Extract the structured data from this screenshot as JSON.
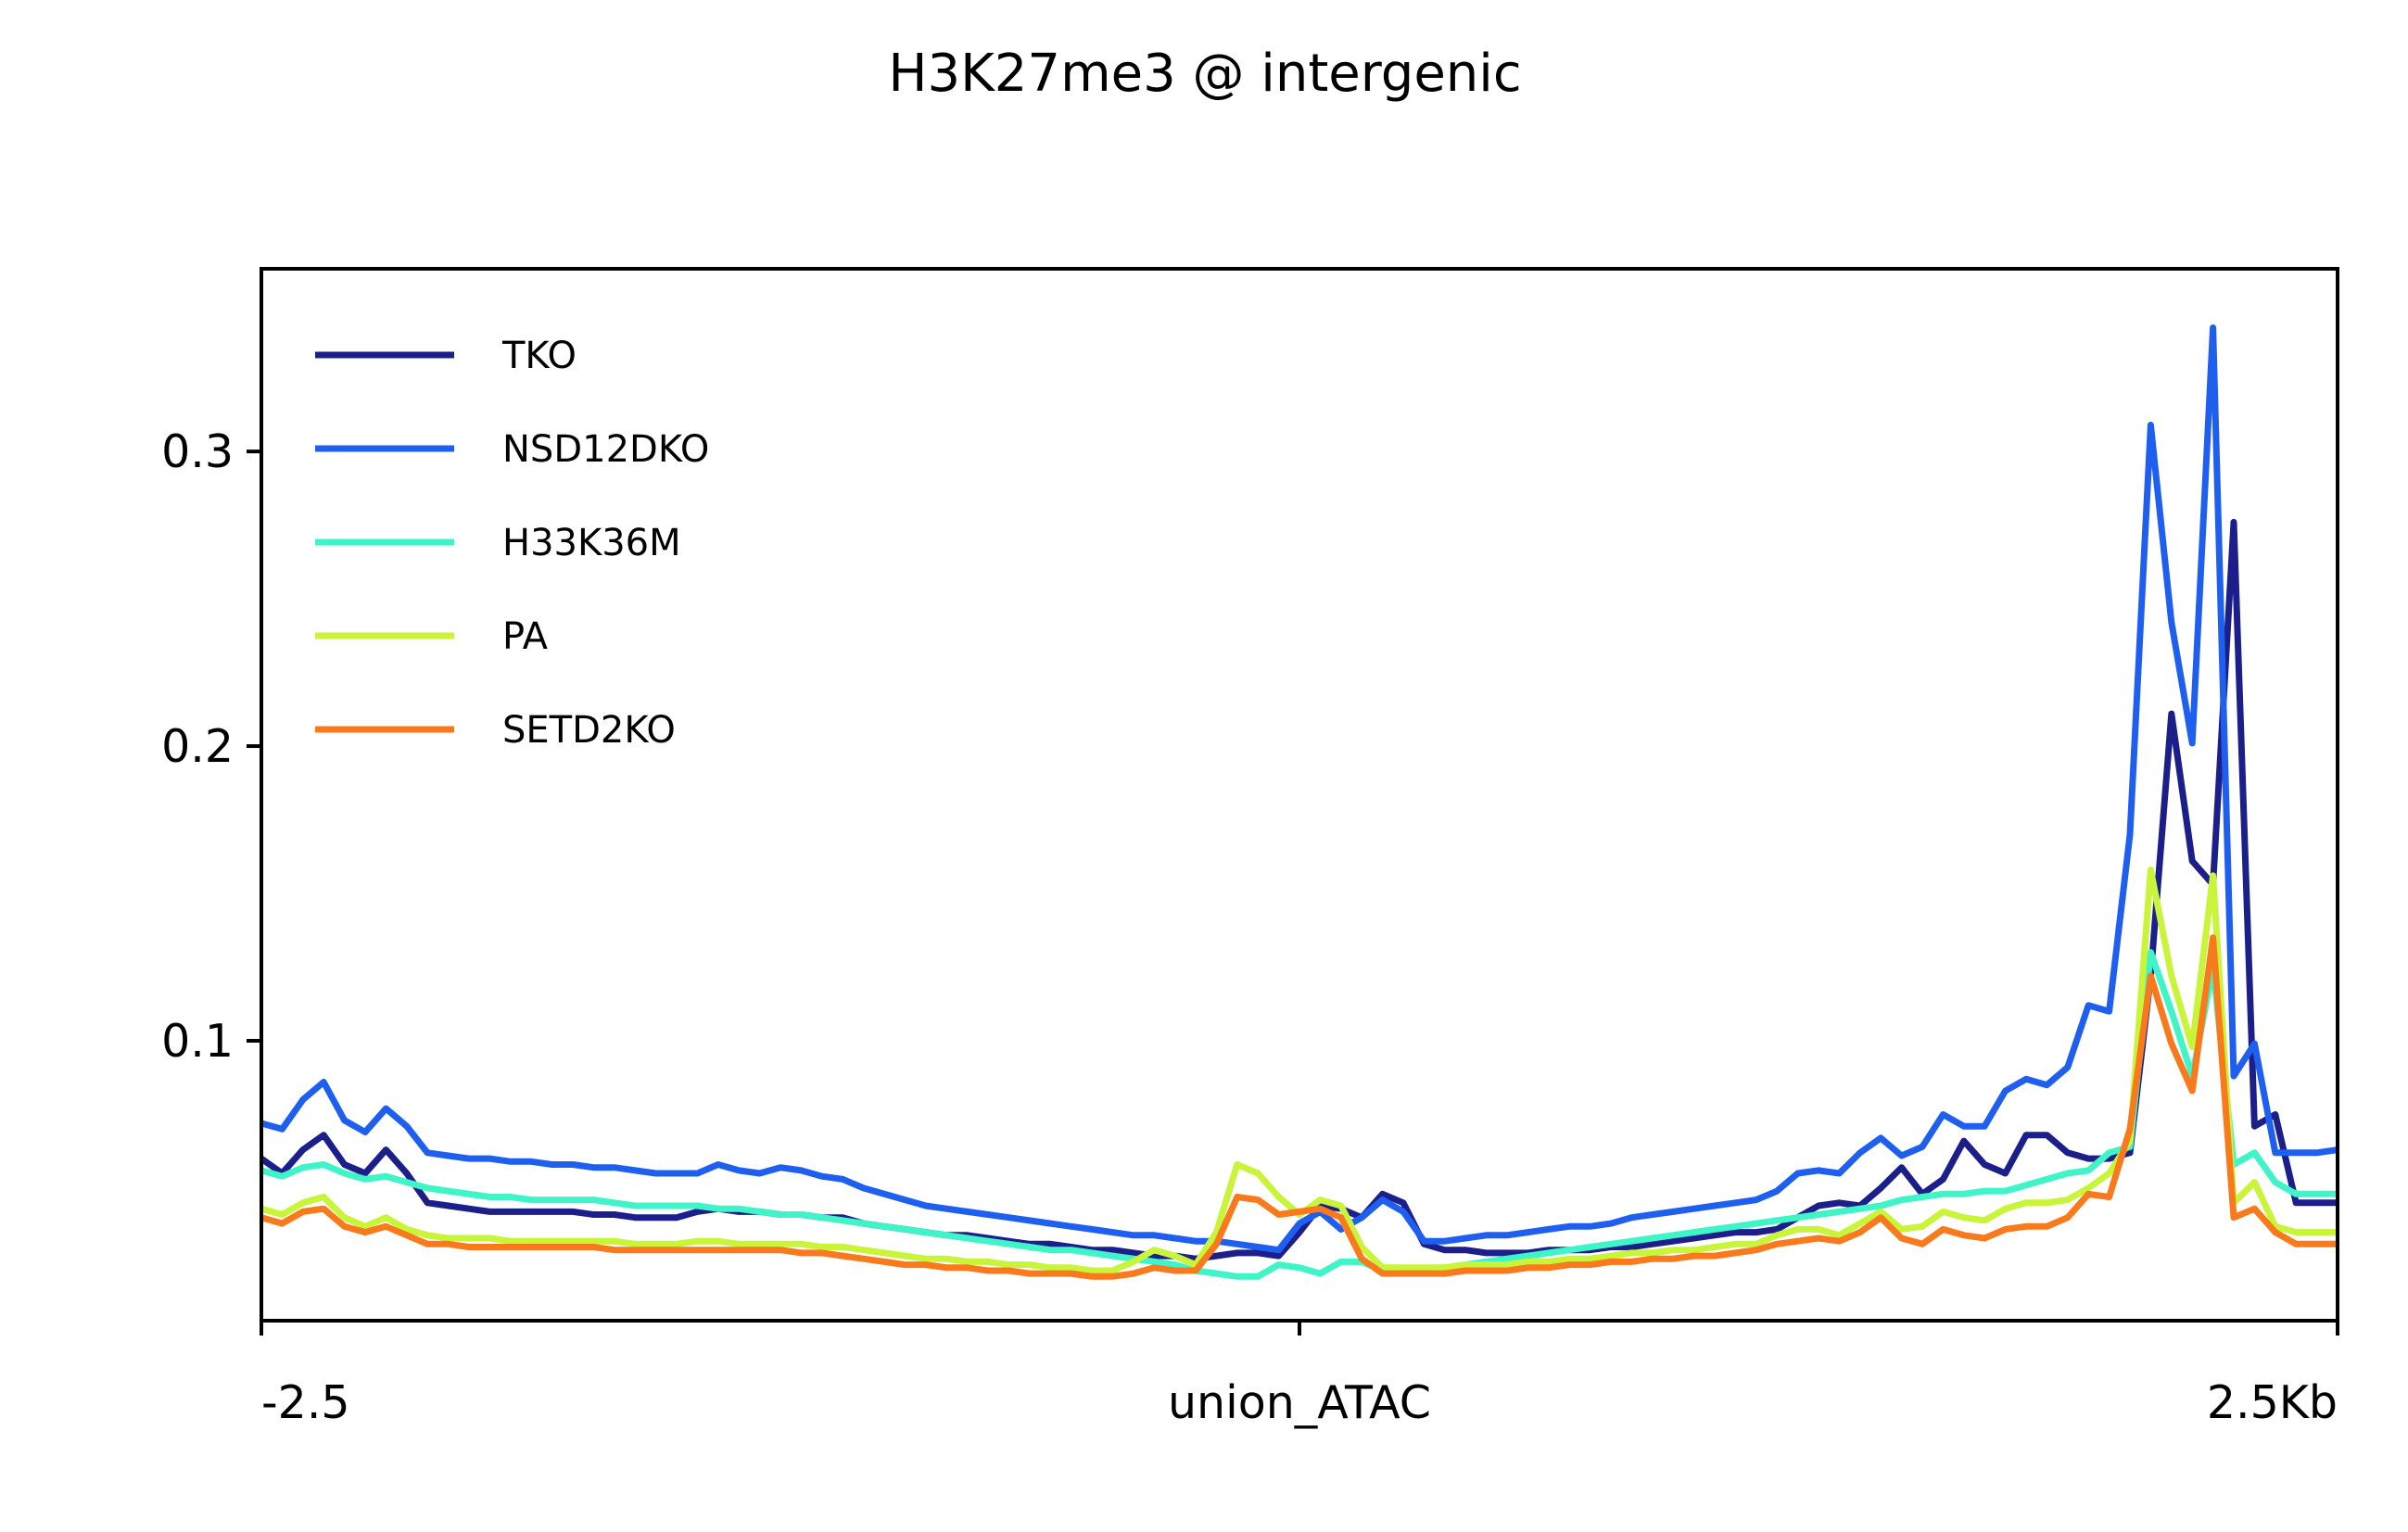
{
  "chart_data": {
    "type": "line",
    "title": "H3K27me3 @ intergenic",
    "xlabel": "",
    "ylabel": "",
    "xlim": [
      -2.5,
      2.5
    ],
    "ylim": [
      0.005,
      0.362
    ],
    "x_ticks": [
      {
        "value": -2.5,
        "label": "-2.5"
      },
      {
        "value": 0,
        "label": "union_ATAC"
      },
      {
        "value": 2.5,
        "label": "2.5Kb"
      }
    ],
    "y_ticks": [
      {
        "value": 0.1,
        "label": "0.1"
      },
      {
        "value": 0.2,
        "label": "0.2"
      },
      {
        "value": 0.3,
        "label": "0.3"
      }
    ],
    "grid": false,
    "legend_position": "top-left",
    "x": [
      -2.5,
      -2.45,
      -2.4,
      -2.35,
      -2.3,
      -2.25,
      -2.2,
      -2.15,
      -2.1,
      -2.05,
      -2.0,
      -1.95,
      -1.9,
      -1.85,
      -1.8,
      -1.75,
      -1.7,
      -1.65,
      -1.6,
      -1.55,
      -1.5,
      -1.45,
      -1.4,
      -1.35,
      -1.3,
      -1.25,
      -1.2,
      -1.15,
      -1.1,
      -1.05,
      -1.0,
      -0.95,
      -0.9,
      -0.85,
      -0.8,
      -0.75,
      -0.7,
      -0.65,
      -0.6,
      -0.55,
      -0.5,
      -0.45,
      -0.4,
      -0.35,
      -0.3,
      -0.25,
      -0.2,
      -0.15,
      -0.1,
      -0.05,
      0.0,
      0.05,
      0.1,
      0.15,
      0.2,
      0.25,
      0.3,
      0.35,
      0.4,
      0.45,
      0.5,
      0.55,
      0.6,
      0.65,
      0.7,
      0.75,
      0.8,
      0.85,
      0.9,
      0.95,
      1.0,
      1.05,
      1.1,
      1.15,
      1.2,
      1.25,
      1.3,
      1.35,
      1.4,
      1.45,
      1.5,
      1.55,
      1.6,
      1.65,
      1.7,
      1.75,
      1.8,
      1.85,
      1.9,
      1.95,
      2.0,
      2.05,
      2.1,
      2.15,
      2.2,
      2.25,
      2.3,
      2.35,
      2.4,
      2.45,
      2.5
    ],
    "series": [
      {
        "name": "TKO",
        "color": "#1c1f8a",
        "values": [
          0.06,
          0.055,
          0.063,
          0.068,
          0.058,
          0.055,
          0.063,
          0.055,
          0.045,
          0.044,
          0.043,
          0.042,
          0.042,
          0.042,
          0.042,
          0.042,
          0.041,
          0.041,
          0.04,
          0.04,
          0.04,
          0.042,
          0.043,
          0.042,
          0.042,
          0.041,
          0.041,
          0.04,
          0.04,
          0.038,
          0.037,
          0.036,
          0.035,
          0.034,
          0.034,
          0.033,
          0.032,
          0.031,
          0.031,
          0.03,
          0.029,
          0.029,
          0.028,
          0.027,
          0.027,
          0.026,
          0.027,
          0.028,
          0.028,
          0.027,
          0.035,
          0.044,
          0.043,
          0.04,
          0.048,
          0.045,
          0.031,
          0.029,
          0.029,
          0.028,
          0.028,
          0.028,
          0.029,
          0.029,
          0.029,
          0.03,
          0.03,
          0.031,
          0.032,
          0.033,
          0.034,
          0.035,
          0.035,
          0.036,
          0.04,
          0.044,
          0.045,
          0.044,
          0.05,
          0.057,
          0.048,
          0.053,
          0.066,
          0.058,
          0.055,
          0.068,
          0.068,
          0.062,
          0.06,
          0.06,
          0.062,
          0.122,
          0.211,
          0.161,
          0.153,
          0.276,
          0.071,
          0.075,
          0.045,
          0.045,
          0.045
        ]
      },
      {
        "name": "NSD12DKO",
        "color": "#1f5ff0",
        "values": [
          0.072,
          0.07,
          0.08,
          0.086,
          0.073,
          0.069,
          0.077,
          0.071,
          0.062,
          0.061,
          0.06,
          0.06,
          0.059,
          0.059,
          0.058,
          0.058,
          0.057,
          0.057,
          0.056,
          0.055,
          0.055,
          0.055,
          0.058,
          0.056,
          0.055,
          0.057,
          0.056,
          0.054,
          0.053,
          0.05,
          0.048,
          0.046,
          0.044,
          0.043,
          0.042,
          0.041,
          0.04,
          0.039,
          0.038,
          0.037,
          0.036,
          0.035,
          0.034,
          0.034,
          0.033,
          0.032,
          0.032,
          0.031,
          0.03,
          0.029,
          0.038,
          0.042,
          0.036,
          0.04,
          0.046,
          0.042,
          0.032,
          0.032,
          0.033,
          0.034,
          0.034,
          0.035,
          0.036,
          0.037,
          0.037,
          0.038,
          0.04,
          0.041,
          0.042,
          0.043,
          0.044,
          0.045,
          0.046,
          0.049,
          0.055,
          0.056,
          0.055,
          0.062,
          0.067,
          0.061,
          0.064,
          0.075,
          0.071,
          0.071,
          0.083,
          0.087,
          0.085,
          0.091,
          0.112,
          0.11,
          0.17,
          0.309,
          0.242,
          0.201,
          0.342,
          0.088,
          0.099,
          0.062,
          0.062,
          0.062,
          0.063
        ]
      },
      {
        "name": "H33K36M",
        "color": "#3ff5c8",
        "values": [
          0.056,
          0.054,
          0.057,
          0.058,
          0.055,
          0.053,
          0.054,
          0.052,
          0.05,
          0.049,
          0.048,
          0.047,
          0.047,
          0.046,
          0.046,
          0.046,
          0.046,
          0.045,
          0.044,
          0.044,
          0.044,
          0.044,
          0.043,
          0.043,
          0.042,
          0.041,
          0.041,
          0.04,
          0.039,
          0.038,
          0.037,
          0.036,
          0.035,
          0.034,
          0.033,
          0.032,
          0.031,
          0.03,
          0.029,
          0.029,
          0.028,
          0.027,
          0.026,
          0.025,
          0.024,
          0.022,
          0.021,
          0.02,
          0.02,
          0.024,
          0.023,
          0.021,
          0.025,
          0.025,
          0.022,
          0.022,
          0.022,
          0.023,
          0.024,
          0.025,
          0.026,
          0.027,
          0.028,
          0.029,
          0.03,
          0.031,
          0.032,
          0.033,
          0.034,
          0.035,
          0.036,
          0.037,
          0.038,
          0.039,
          0.04,
          0.041,
          0.042,
          0.043,
          0.044,
          0.046,
          0.047,
          0.048,
          0.048,
          0.049,
          0.049,
          0.051,
          0.053,
          0.055,
          0.056,
          0.062,
          0.064,
          0.13,
          0.11,
          0.088,
          0.125,
          0.058,
          0.062,
          0.052,
          0.048,
          0.048,
          0.048
        ]
      },
      {
        "name": "PA",
        "color": "#c8f53a",
        "values": [
          0.043,
          0.041,
          0.045,
          0.047,
          0.04,
          0.037,
          0.04,
          0.036,
          0.034,
          0.033,
          0.033,
          0.033,
          0.032,
          0.032,
          0.032,
          0.032,
          0.032,
          0.032,
          0.031,
          0.031,
          0.031,
          0.032,
          0.032,
          0.031,
          0.031,
          0.031,
          0.031,
          0.03,
          0.03,
          0.029,
          0.028,
          0.027,
          0.026,
          0.026,
          0.025,
          0.025,
          0.024,
          0.024,
          0.023,
          0.023,
          0.022,
          0.022,
          0.025,
          0.029,
          0.027,
          0.024,
          0.035,
          0.058,
          0.055,
          0.047,
          0.041,
          0.046,
          0.044,
          0.03,
          0.023,
          0.023,
          0.023,
          0.023,
          0.024,
          0.024,
          0.024,
          0.025,
          0.025,
          0.026,
          0.026,
          0.027,
          0.028,
          0.028,
          0.029,
          0.029,
          0.03,
          0.031,
          0.031,
          0.034,
          0.036,
          0.036,
          0.034,
          0.038,
          0.042,
          0.036,
          0.037,
          0.042,
          0.04,
          0.039,
          0.043,
          0.045,
          0.045,
          0.046,
          0.05,
          0.055,
          0.066,
          0.158,
          0.122,
          0.098,
          0.156,
          0.045,
          0.052,
          0.037,
          0.035,
          0.035,
          0.035
        ]
      },
      {
        "name": "SETD2KO",
        "color": "#f97a1c",
        "values": [
          0.04,
          0.038,
          0.042,
          0.043,
          0.037,
          0.035,
          0.037,
          0.034,
          0.031,
          0.031,
          0.03,
          0.03,
          0.03,
          0.03,
          0.03,
          0.03,
          0.03,
          0.029,
          0.029,
          0.029,
          0.029,
          0.029,
          0.029,
          0.029,
          0.029,
          0.029,
          0.028,
          0.028,
          0.027,
          0.026,
          0.025,
          0.024,
          0.024,
          0.023,
          0.023,
          0.022,
          0.022,
          0.021,
          0.021,
          0.021,
          0.02,
          0.02,
          0.021,
          0.023,
          0.022,
          0.022,
          0.031,
          0.047,
          0.046,
          0.041,
          0.042,
          0.043,
          0.04,
          0.026,
          0.021,
          0.021,
          0.021,
          0.021,
          0.022,
          0.022,
          0.022,
          0.023,
          0.023,
          0.024,
          0.024,
          0.025,
          0.025,
          0.026,
          0.026,
          0.027,
          0.027,
          0.028,
          0.029,
          0.031,
          0.032,
          0.033,
          0.032,
          0.035,
          0.04,
          0.033,
          0.031,
          0.036,
          0.034,
          0.033,
          0.036,
          0.037,
          0.037,
          0.04,
          0.048,
          0.047,
          0.07,
          0.122,
          0.099,
          0.083,
          0.135,
          0.04,
          0.043,
          0.035,
          0.031,
          0.031,
          0.031
        ]
      }
    ]
  }
}
